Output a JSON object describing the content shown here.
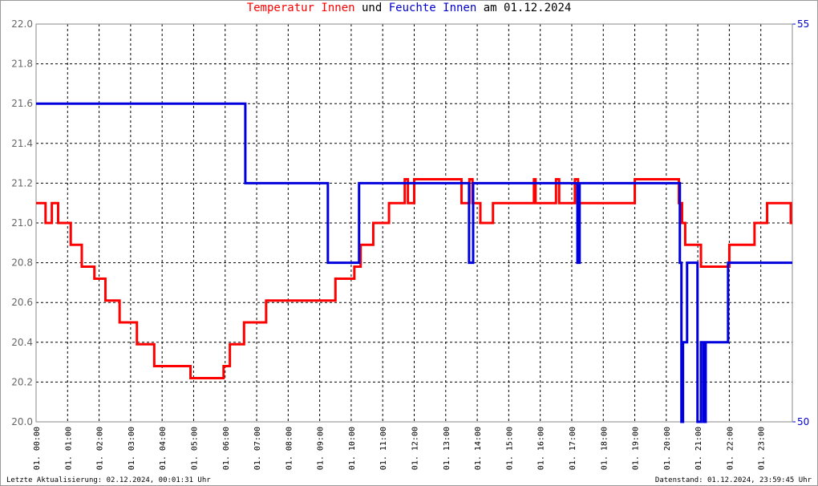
{
  "chart_data": {
    "type": "line",
    "title_parts": [
      {
        "text": "Temperatur Innen",
        "color": "#ff0000"
      },
      {
        "text": "und",
        "color": "#000000"
      },
      {
        "text": "Feuchte Innen",
        "color": "#0000cc"
      },
      {
        "text": "am 01.12.2024",
        "color": "#000000"
      }
    ],
    "footer_left": "Letzte Aktualisierung: 02.12.2024, 00:01:31 Uhr",
    "footer_right": "Datenstand: 01.12.2024, 23:59:45 Uhr",
    "xlim": [
      0,
      24
    ],
    "xticks": [
      {
        "value": 0,
        "label": "01. 00:00"
      },
      {
        "value": 1,
        "label": "01. 01:00"
      },
      {
        "value": 2,
        "label": "01. 02:00"
      },
      {
        "value": 3,
        "label": "01. 03:00"
      },
      {
        "value": 4,
        "label": "01. 04:00"
      },
      {
        "value": 5,
        "label": "01. 05:00"
      },
      {
        "value": 6,
        "label": "01. 06:00"
      },
      {
        "value": 7,
        "label": "01. 07:00"
      },
      {
        "value": 8,
        "label": "01. 08:00"
      },
      {
        "value": 9,
        "label": "01. 09:00"
      },
      {
        "value": 10,
        "label": "01. 10:00"
      },
      {
        "value": 11,
        "label": "01. 11:00"
      },
      {
        "value": 12,
        "label": "01. 12:00"
      },
      {
        "value": 13,
        "label": "01. 13:00"
      },
      {
        "value": 14,
        "label": "01. 14:00"
      },
      {
        "value": 15,
        "label": "01. 15:00"
      },
      {
        "value": 16,
        "label": "01. 16:00"
      },
      {
        "value": 17,
        "label": "01. 17:00"
      },
      {
        "value": 18,
        "label": "01. 18:00"
      },
      {
        "value": 19,
        "label": "01. 19:00"
      },
      {
        "value": 20,
        "label": "01. 20:00"
      },
      {
        "value": 21,
        "label": "01. 21:00"
      },
      {
        "value": 22,
        "label": "01. 22:00"
      },
      {
        "value": 23,
        "label": "01. 23:00"
      }
    ],
    "ylim": [
      20,
      22
    ],
    "yticks": [
      {
        "value": 20,
        "label": "20.0"
      },
      20.2,
      20.4,
      20.6,
      20.8,
      {
        "value": 21,
        "label": "21.0"
      },
      21.2,
      21.4,
      21.6,
      21.8,
      {
        "value": 22,
        "label": "22.0"
      }
    ],
    "y2lim": [
      50,
      55
    ],
    "y2ticks": [
      50,
      55
    ],
    "grid": true,
    "series": [
      {
        "color": "#ff0000",
        "x": [
          0,
          0.3,
          0.3,
          0.5,
          0.5,
          0.7,
          0.7,
          1.1,
          1.1,
          1.45,
          1.45,
          1.85,
          1.85,
          2.2,
          2.2,
          2.65,
          2.65,
          3.2,
          3.2,
          3.75,
          3.75,
          4.9,
          4.9,
          5.95,
          5.95,
          6.15,
          6.15,
          6.6,
          6.6,
          7.3,
          7.3,
          9.5,
          9.5,
          10.1,
          10.1,
          10.3,
          10.3,
          10.7,
          10.7,
          11.2,
          11.2,
          11.7,
          11.7,
          11.8,
          11.8,
          12.0,
          12.0,
          13.5,
          13.5,
          13.75,
          13.75,
          13.85,
          13.85,
          14.1,
          14.1,
          14.5,
          14.5,
          15.8,
          15.8,
          15.85,
          15.85,
          16.5,
          16.5,
          16.6,
          16.6,
          17.1,
          17.1,
          17.2,
          17.2,
          19.0,
          19.0,
          20.4,
          20.4,
          20.5,
          20.5,
          20.6,
          20.6,
          21.1,
          21.1,
          22.0,
          22.0,
          22.8,
          22.8,
          23.2,
          23.2,
          23.95,
          23.95,
          24
        ],
        "values": [
          21.1,
          21.1,
          21.0,
          21.0,
          21.1,
          21.1,
          21.0,
          21.0,
          20.89,
          20.89,
          20.78,
          20.78,
          20.72,
          20.72,
          20.61,
          20.61,
          20.5,
          20.5,
          20.39,
          20.39,
          20.28,
          20.28,
          20.22,
          20.22,
          20.28,
          20.28,
          20.39,
          20.39,
          20.5,
          20.5,
          20.61,
          20.61,
          20.72,
          20.72,
          20.78,
          20.78,
          20.89,
          20.89,
          21.0,
          21.0,
          21.1,
          21.1,
          21.22,
          21.22,
          21.1,
          21.1,
          21.22,
          21.22,
          21.1,
          21.1,
          21.22,
          21.22,
          21.1,
          21.1,
          21.0,
          21.0,
          21.1,
          21.1,
          21.22,
          21.22,
          21.1,
          21.1,
          21.22,
          21.22,
          21.1,
          21.1,
          21.22,
          21.22,
          21.1,
          21.1,
          21.22,
          21.22,
          21.1,
          21.1,
          21.0,
          21.0,
          20.89,
          20.89,
          20.78,
          20.78,
          20.89,
          20.89,
          21.0,
          21.0,
          21.1,
          21.1,
          21.0,
          21.0
        ]
      },
      {
        "color": "#0000dd",
        "axis": "y2",
        "x": [
          0,
          6.64,
          6.64,
          9.26,
          9.26,
          10.25,
          10.25,
          13.74,
          13.74,
          13.87,
          13.87,
          17.18,
          17.18,
          17.25,
          17.25,
          20.43,
          20.43,
          20.48,
          20.48,
          20.53,
          20.53,
          20.66,
          20.66,
          20.99,
          20.99,
          21.1,
          21.1,
          21.18,
          21.18,
          21.25,
          21.25,
          21.96,
          21.96,
          24
        ],
        "values": [
          54,
          54,
          53,
          53,
          52,
          52,
          53,
          53,
          52,
          52,
          53,
          53,
          52,
          52,
          53,
          53,
          52,
          52,
          50,
          50,
          51,
          51,
          52,
          52,
          50,
          50,
          51,
          51,
          50,
          50,
          51,
          51,
          52,
          52
        ]
      }
    ]
  }
}
